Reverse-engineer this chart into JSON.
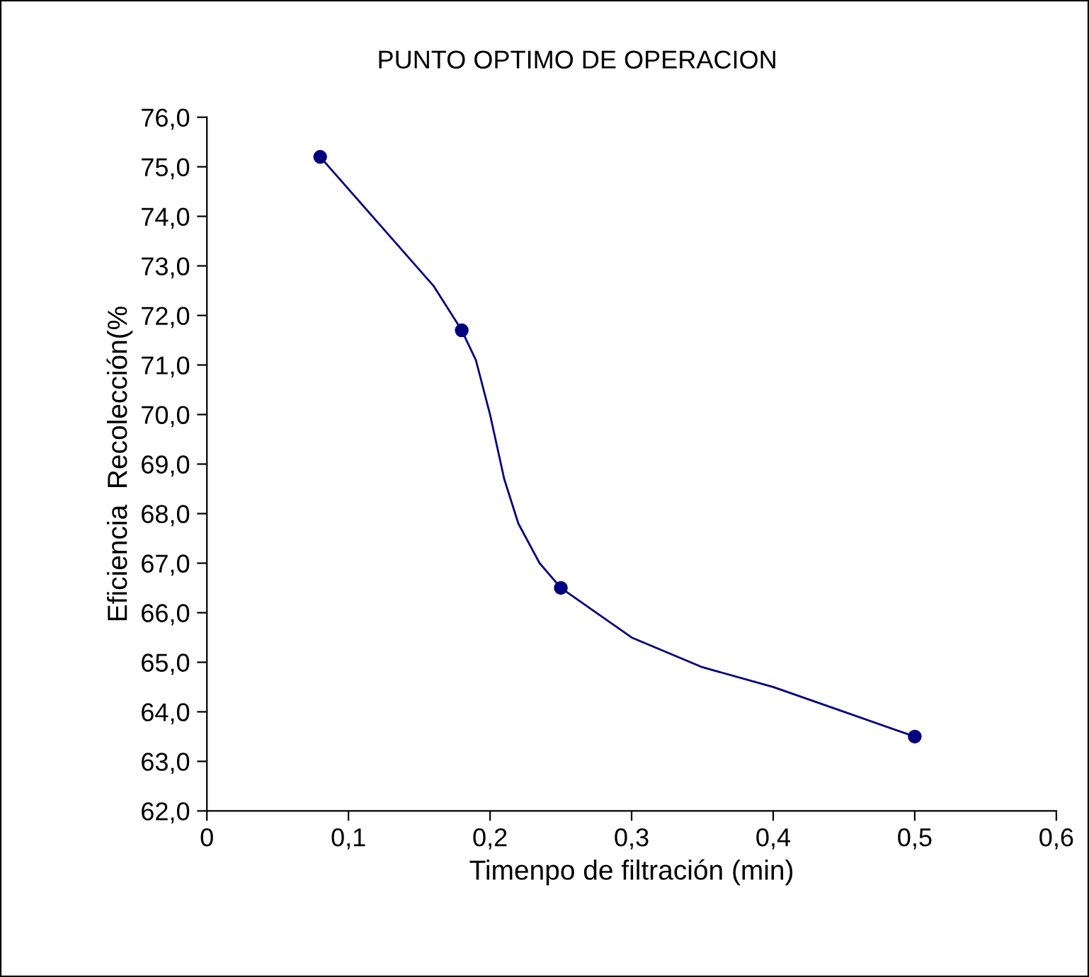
{
  "chart_data": {
    "type": "line",
    "title": "PUNTO OPTIMO DE OPERACION",
    "xlabel": "Timenpo de filtración (min)",
    "ylabel": "Eficiencia  Recolección(%",
    "x": [
      0.08,
      0.18,
      0.25,
      0.5
    ],
    "series": [
      {
        "marker": "none",
        "color": "#000080",
        "x": [
          0.08,
          0.12,
          0.16,
          0.18,
          0.19,
          0.2,
          0.21,
          0.22,
          0.235,
          0.25,
          0.3,
          0.35,
          0.4,
          0.45,
          0.5
        ],
        "values": [
          75.2,
          73.9,
          72.6,
          71.7,
          71.1,
          70.0,
          68.7,
          67.8,
          67.0,
          66.5,
          65.5,
          64.9,
          64.5,
          64.0,
          63.5
        ]
      },
      {
        "type": "scatter",
        "color": "#000080",
        "values": [
          75.2,
          71.7,
          66.5,
          63.5
        ]
      }
    ],
    "marker": "circle",
    "line_style": "solid",
    "grid": false,
    "legend": false,
    "xlim": [
      0,
      0.6
    ],
    "xticks": [
      0,
      {
        "value": 0.1,
        "label": "0,1"
      },
      {
        "value": 0.2,
        "label": "0,2"
      },
      {
        "value": 0.3,
        "label": "0,3"
      },
      {
        "value": 0.4,
        "label": "0,4"
      },
      {
        "value": 0.5,
        "label": "0,5"
      },
      {
        "value": 0.6,
        "label": "0,6"
      }
    ],
    "ylim": [
      62,
      76
    ],
    "yticks": [
      {
        "value": 62,
        "label": "62,0"
      },
      {
        "value": 63,
        "label": "63,0"
      },
      {
        "value": 64,
        "label": "64,0"
      },
      {
        "value": 65,
        "label": "65,0"
      },
      {
        "value": 66,
        "label": "66,0"
      },
      {
        "value": 67,
        "label": "67,0"
      },
      {
        "value": 68,
        "label": "68,0"
      },
      {
        "value": 69,
        "label": "69,0"
      },
      {
        "value": 70,
        "label": "70,0"
      },
      {
        "value": 71,
        "label": "71,0"
      },
      {
        "value": 72,
        "label": "72,0"
      },
      {
        "value": 73,
        "label": "73,0"
      },
      {
        "value": 74,
        "label": "74,0"
      },
      {
        "value": 75,
        "label": "75,0"
      },
      {
        "value": 76,
        "label": "76,0"
      }
    ]
  }
}
